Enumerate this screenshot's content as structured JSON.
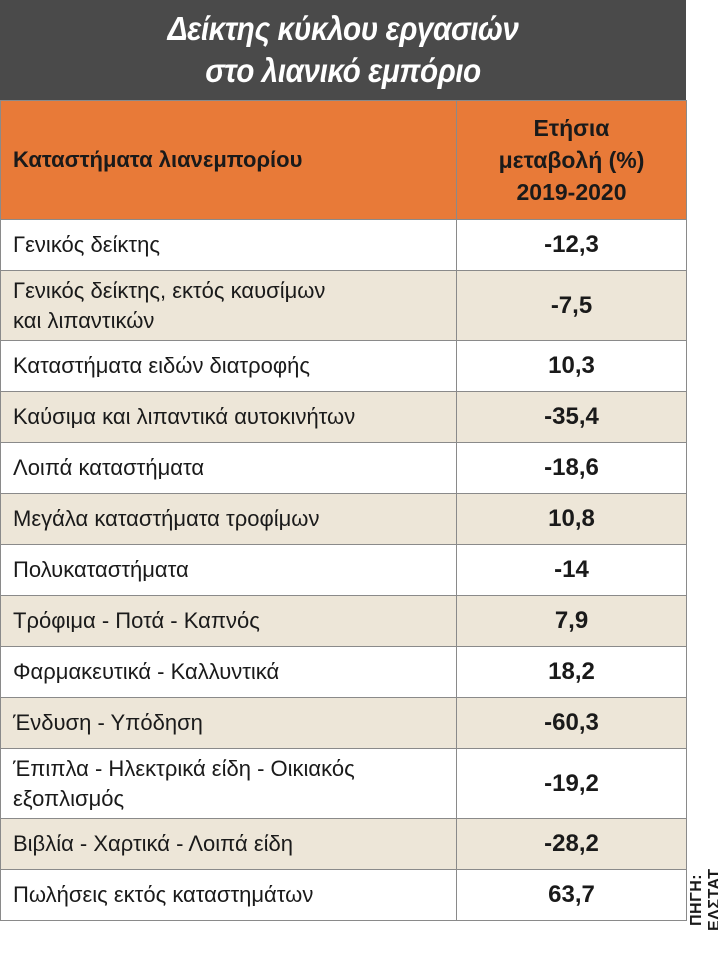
{
  "title_lines": [
    "Δείκτης κύκλου εργασιών",
    "στο λιανικό εμπόριο"
  ],
  "headers": {
    "category": "Καταστήματα λιανεμπορίου",
    "value_lines": [
      "Ετήσια",
      "μεταβολή (%)",
      "2019-2020"
    ]
  },
  "source": "ΠΗΓΗ: ΕΛΣΤΑΤ",
  "rows": [
    {
      "lines": [
        "Γενικός δείκτης"
      ],
      "value": "-12,3"
    },
    {
      "lines": [
        "Γενικός δείκτης, εκτός καυσίμων",
        "και λιπαντικών"
      ],
      "value": "-7,5"
    },
    {
      "lines": [
        "Καταστήματα ειδών διατροφής"
      ],
      "value": "10,3"
    },
    {
      "lines": [
        "Καύσιμα και λιπαντικά αυτοκινήτων"
      ],
      "value": "-35,4"
    },
    {
      "lines": [
        "Λοιπά καταστήματα"
      ],
      "value": "-18,6"
    },
    {
      "lines": [
        "Μεγάλα καταστήματα τροφίμων"
      ],
      "value": "10,8"
    },
    {
      "lines": [
        "Πολυκαταστήματα"
      ],
      "value": "-14"
    },
    {
      "lines": [
        "Τρόφιμα - Ποτά - Καπνός"
      ],
      "value": "7,9"
    },
    {
      "lines": [
        "Φαρμακευτικά - Καλλυντικά"
      ],
      "value": "18,2"
    },
    {
      "lines": [
        "Ένδυση - Υπόδηση"
      ],
      "value": "-60,3"
    },
    {
      "lines": [
        "Έπιπλα - Ηλεκτρικά είδη - Οικιακός",
        "εξοπλισμός"
      ],
      "value": "-19,2"
    },
    {
      "lines": [
        "Βιβλία - Χαρτικά - Λοιπά είδη"
      ],
      "value": "-28,2"
    },
    {
      "lines": [
        "Πωλήσεις εκτός καταστημάτων"
      ],
      "value": "63,7"
    }
  ],
  "colors": {
    "title_bg": "#4a4a4a",
    "header_bg": "#e87a38",
    "row_alt_bg": "#ede6d8",
    "row_bg": "#ffffff"
  },
  "chart_data": {
    "type": "table",
    "title": "Δείκτης κύκλου εργασιών στο λιανικό εμπόριο",
    "columns": [
      "Καταστήματα λιανεμπορίου",
      "Ετήσια μεταβολή (%) 2019-2020"
    ],
    "categories": [
      "Γενικός δείκτης",
      "Γενικός δείκτης, εκτός καυσίμων και λιπαντικών",
      "Καταστήματα ειδών διατροφής",
      "Καύσιμα και λιπαντικά αυτοκινήτων",
      "Λοιπά καταστήματα",
      "Μεγάλα καταστήματα τροφίμων",
      "Πολυκαταστήματα",
      "Τρόφιμα - Ποτά - Καπνός",
      "Φαρμακευτικά - Καλλυντικά",
      "Ένδυση - Υπόδηση",
      "Έπιπλα - Ηλεκτρικά είδη - Οικιακός εξοπλισμός",
      "Βιβλία - Χαρτικά - Λοιπά είδη",
      "Πωλήσεις εκτός καταστημάτων"
    ],
    "values": [
      -12.3,
      -7.5,
      10.3,
      -35.4,
      -18.6,
      10.8,
      -14,
      7.9,
      18.2,
      -60.3,
      -19.2,
      -28.2,
      63.7
    ]
  }
}
